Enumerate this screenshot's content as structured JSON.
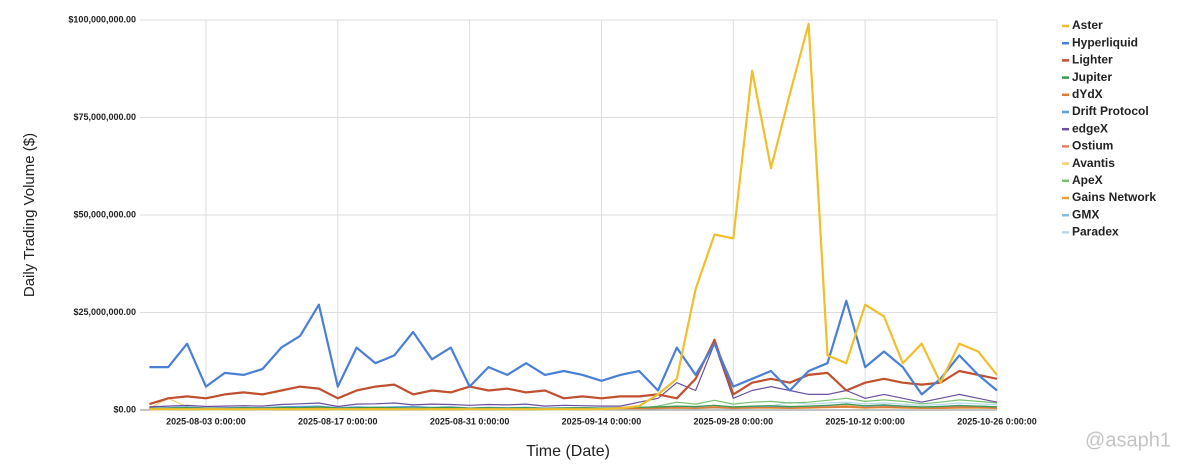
{
  "chart_data": {
    "type": "line",
    "y_label": "Daily Trading Volume ($)",
    "x_label": "Time (Date)",
    "watermark": "@asaph1",
    "legend": "right",
    "grid": true,
    "x": [
      "2025-07-28",
      "2025-07-30",
      "2025-08-01",
      "2025-08-03",
      "2025-08-05",
      "2025-08-07",
      "2025-08-09",
      "2025-08-11",
      "2025-08-13",
      "2025-08-15",
      "2025-08-17",
      "2025-08-19",
      "2025-08-21",
      "2025-08-23",
      "2025-08-25",
      "2025-08-27",
      "2025-08-29",
      "2025-08-31",
      "2025-09-02",
      "2025-09-04",
      "2025-09-06",
      "2025-09-08",
      "2025-09-10",
      "2025-09-12",
      "2025-09-14",
      "2025-09-16",
      "2025-09-18",
      "2025-09-20",
      "2025-09-22",
      "2025-09-24",
      "2025-09-26",
      "2025-09-28",
      "2025-09-30",
      "2025-10-02",
      "2025-10-04",
      "2025-10-06",
      "2025-10-08",
      "2025-10-10",
      "2025-10-12",
      "2025-10-14",
      "2025-10-16",
      "2025-10-18",
      "2025-10-20",
      "2025-10-22",
      "2025-10-24",
      "2025-10-26"
    ],
    "xlim": [
      "2025-07-27",
      "2025-10-26"
    ],
    "xticks": [
      {
        "value": "2025-08-03",
        "label": "2025-08-03 0:00:00"
      },
      {
        "value": "2025-08-17",
        "label": "2025-08-17 0:00:00"
      },
      {
        "value": "2025-08-31",
        "label": "2025-08-31 0:00:00"
      },
      {
        "value": "2025-09-14",
        "label": "2025-09-14 0:00:00"
      },
      {
        "value": "2025-09-28",
        "label": "2025-09-28 0:00:00"
      },
      {
        "value": "2025-10-12",
        "label": "2025-10-12 0:00:00"
      },
      {
        "value": "2025-10-26",
        "label": "2025-10-26 0:00:00"
      }
    ],
    "ylim": [
      0,
      100000000
    ],
    "yticks": [
      {
        "value": 0,
        "label": "$0.00"
      },
      {
        "value": 25000000,
        "label": "$25,000,000.00"
      },
      {
        "value": 50000000,
        "label": "$50,000,000.00"
      },
      {
        "value": 75000000,
        "label": "$75,000,000.00"
      },
      {
        "value": 100000000,
        "label": "$100,000,000.00"
      }
    ],
    "series": [
      {
        "name": "Aster",
        "color": "#f0bf2c",
        "values": [
          200000.0,
          200000.0,
          200000.0,
          200000.0,
          200000.0,
          200000.0,
          200000.0,
          200000.0,
          200000.0,
          200000.0,
          200000.0,
          200000.0,
          200000.0,
          200000.0,
          200000.0,
          200000.0,
          200000.0,
          200000.0,
          200000.0,
          200000.0,
          200000.0,
          200000.0,
          200000.0,
          200000.0,
          200000.0,
          500000.0,
          1000000.0,
          4000000.0,
          8000000.0,
          31000000.0,
          45000000.0,
          44000000.0,
          87000000.0,
          62000000.0,
          81000000.0,
          99000000.0,
          14000000.0,
          12000000.0,
          27000000.0,
          24000000.0,
          12000000.0,
          17000000.0,
          7000000.0,
          17000000.0,
          15000000.0,
          9000000.0
        ]
      },
      {
        "name": "Hyperliquid",
        "color": "#4a7fd6",
        "values": [
          11000000.0,
          11000000.0,
          17000000.0,
          6000000.0,
          9500000.0,
          9000000.0,
          10500000.0,
          16000000.0,
          19000000.0,
          27000000.0,
          6000000.0,
          16000000.0,
          12000000.0,
          14000000.0,
          20000000.0,
          13000000.0,
          16000000.0,
          6000000.0,
          11000000.0,
          9000000.0,
          12000000.0,
          9000000.0,
          10000000.0,
          9000000.0,
          7500000.0,
          9000000.0,
          10000000.0,
          5000000.0,
          16000000.0,
          9000000.0,
          17000000.0,
          6000000.0,
          8000000.0,
          10000000.0,
          5000000.0,
          10000000.0,
          12000000.0,
          28000000.0,
          11000000.0,
          15000000.0,
          11000000.0,
          4000000.0,
          8000000.0,
          14000000.0,
          9000000.0,
          5000000.0
        ]
      },
      {
        "name": "Lighter",
        "color": "#c0502f",
        "values": [
          1500000.0,
          3000000.0,
          3500000.0,
          3000000.0,
          4000000.0,
          4500000.0,
          4000000.0,
          5000000.0,
          6000000.0,
          5500000.0,
          3000000.0,
          5000000.0,
          6000000.0,
          6500000.0,
          4000000.0,
          5000000.0,
          4500000.0,
          6000000.0,
          5000000.0,
          5500000.0,
          4500000.0,
          5000000.0,
          3000000.0,
          3500000.0,
          3000000.0,
          3500000.0,
          3500000.0,
          4000000.0,
          3000000.0,
          8000000.0,
          18000000.0,
          4000000.0,
          7000000.0,
          8000000.0,
          7000000.0,
          9000000.0,
          9500000.0,
          5000000.0,
          7000000.0,
          8000000.0,
          7000000.0,
          6500000.0,
          7000000.0,
          10000000.0,
          9000000.0,
          8000000.0
        ]
      },
      {
        "name": "Jupiter",
        "color": "#3a9a50",
        "values": [
          400000.0,
          500000.0,
          600000.0,
          500000.0,
          400000.0,
          600000.0,
          500000.0,
          700000.0,
          600000.0,
          800000.0,
          500000.0,
          600000.0,
          700000.0,
          600000.0,
          500000.0,
          600000.0,
          700000.0,
          500000.0,
          600000.0,
          500000.0,
          600000.0,
          400000.0,
          500000.0,
          600000.0,
          500000.0,
          600000.0,
          700000.0,
          800000.0,
          1000000.0,
          900000.0,
          1200000.0,
          800000.0,
          1000000.0,
          1100000.0,
          900000.0,
          1000000.0,
          1200000.0,
          1500000.0,
          1100000.0,
          1300000.0,
          1000000.0,
          800000.0,
          900000.0,
          1100000.0,
          1000000.0,
          800000.0
        ]
      },
      {
        "name": "dYdX",
        "color": "#e07a2f",
        "values": [
          300000.0,
          300000.0,
          400000.0,
          300000.0,
          300000.0,
          400000.0,
          300000.0,
          400000.0,
          500000.0,
          400000.0,
          300000.0,
          400000.0,
          400000.0,
          300000.0,
          400000.0,
          300000.0,
          400000.0,
          300000.0,
          300000.0,
          400000.0,
          300000.0,
          300000.0,
          400000.0,
          300000.0,
          300000.0,
          400000.0,
          400000.0,
          500000.0,
          600000.0,
          500000.0,
          700000.0,
          500000.0,
          600000.0,
          600000.0,
          500000.0,
          600000.0,
          700000.0,
          800000.0,
          600000.0,
          700000.0,
          600000.0,
          500000.0,
          500000.0,
          600000.0,
          600000.0,
          500000.0
        ]
      },
      {
        "name": "Drift Protocol",
        "color": "#5aa0d6",
        "values": [
          500000.0,
          600000.0,
          800000.0,
          500000.0,
          600000.0,
          700000.0,
          600000.0,
          800000.0,
          900000.0,
          1000000.0,
          600000.0,
          800000.0,
          700000.0,
          800000.0,
          900000.0,
          700000.0,
          800000.0,
          500000.0,
          700000.0,
          600000.0,
          700000.0,
          500000.0,
          600000.0,
          600000.0,
          500000.0,
          600000.0,
          700000.0,
          600000.0,
          1000000.0,
          800000.0,
          1200000.0,
          700000.0,
          900000.0,
          1000000.0,
          800000.0,
          1000000.0,
          1100000.0,
          1600000.0,
          1000000.0,
          1200000.0,
          1000000.0,
          700000.0,
          900000.0,
          1200000.0,
          1000000.0,
          800000.0
        ]
      },
      {
        "name": "edgeX",
        "color": "#6a4f9e",
        "values": [
          800000.0,
          1000000.0,
          1200000.0,
          900000.0,
          1000000.0,
          1100000.0,
          1000000.0,
          1400000.0,
          1600000.0,
          1800000.0,
          900000.0,
          1500000.0,
          1600000.0,
          1800000.0,
          1300000.0,
          1500000.0,
          1400000.0,
          1200000.0,
          1400000.0,
          1300000.0,
          1500000.0,
          1000000.0,
          1200000.0,
          1100000.0,
          1000000.0,
          1000000.0,
          2000000.0,
          3000000.0,
          7000000.0,
          5000000.0,
          17000000.0,
          3000000.0,
          5000000.0,
          6000000.0,
          5000000.0,
          4000000.0,
          4000000.0,
          5000000.0,
          3000000.0,
          4000000.0,
          3000000.0,
          2000000.0,
          3000000.0,
          4000000.0,
          3000000.0,
          2000000.0
        ]
      },
      {
        "name": "Ostium",
        "color": "#e0846a",
        "values": [
          200000.0,
          300000.0,
          300000.0,
          200000.0,
          300000.0,
          300000.0,
          200000.0,
          300000.0,
          400000.0,
          300000.0,
          200000.0,
          300000.0,
          300000.0,
          400000.0,
          300000.0,
          300000.0,
          400000.0,
          300000.0,
          300000.0,
          300000.0,
          400000.0,
          300000.0,
          300000.0,
          300000.0,
          300000.0,
          400000.0,
          400000.0,
          500000.0,
          600000.0,
          500000.0,
          800000.0,
          500000.0,
          600000.0,
          700000.0,
          600000.0,
          700000.0,
          800000.0,
          1000000.0,
          700000.0,
          900000.0,
          800000.0,
          600000.0,
          700000.0,
          900000.0,
          800000.0,
          600000.0
        ]
      },
      {
        "name": "Avantis",
        "color": "#f5d070",
        "values": [
          500000.0,
          3000000.0,
          800000.0,
          500000.0,
          600000.0,
          500000.0,
          600000.0,
          700000.0,
          600000.0,
          800000.0,
          500000.0,
          600000.0,
          600000.0,
          500000.0,
          600000.0,
          500000.0,
          600000.0,
          400000.0,
          500000.0,
          500000.0,
          600000.0,
          400000.0,
          500000.0,
          500000.0,
          400000.0,
          500000.0,
          600000.0,
          700000.0,
          900000.0,
          800000.0,
          1000000.0,
          700000.0,
          900000.0,
          1000000.0,
          800000.0,
          900000.0,
          1000000.0,
          1300000.0,
          900000.0,
          1100000.0,
          900000.0,
          700000.0,
          800000.0,
          1000000.0,
          900000.0,
          700000.0
        ]
      },
      {
        "name": "ApeX",
        "color": "#7ac070",
        "values": [
          300000.0,
          400000.0,
          500000.0,
          300000.0,
          400000.0,
          400000.0,
          300000.0,
          500000.0,
          500000.0,
          600000.0,
          300000.0,
          400000.0,
          500000.0,
          400000.0,
          400000.0,
          400000.0,
          500000.0,
          300000.0,
          400000.0,
          400000.0,
          400000.0,
          300000.0,
          400000.0,
          400000.0,
          300000.0,
          400000.0,
          500000.0,
          1000000.0,
          2000000.0,
          1500000.0,
          2500000.0,
          1500000.0,
          2000000.0,
          2200000.0,
          1800000.0,
          2000000.0,
          2500000.0,
          3000000.0,
          2200000.0,
          2600000.0,
          2200000.0,
          1600000.0,
          2000000.0,
          2600000.0,
          2200000.0,
          1800000.0
        ]
      },
      {
        "name": "Gains Network",
        "color": "#e8a040",
        "values": [
          200000.0,
          200000.0,
          300000.0,
          200000.0,
          200000.0,
          300000.0,
          200000.0,
          300000.0,
          300000.0,
          300000.0,
          200000.0,
          300000.0,
          300000.0,
          200000.0,
          300000.0,
          200000.0,
          300000.0,
          200000.0,
          200000.0,
          300000.0,
          200000.0,
          200000.0,
          300000.0,
          200000.0,
          200000.0,
          300000.0,
          300000.0,
          400000.0,
          500000.0,
          400000.0,
          600000.0,
          400000.0,
          500000.0,
          500000.0,
          400000.0,
          500000.0,
          600000.0,
          700000.0,
          500000.0,
          600000.0,
          500000.0,
          400000.0,
          400000.0,
          500000.0,
          500000.0,
          400000.0
        ]
      },
      {
        "name": "GMX",
        "color": "#8abde0",
        "values": [
          300000.0,
          400000.0,
          500000.0,
          300000.0,
          400000.0,
          400000.0,
          400000.0,
          500000.0,
          600000.0,
          700000.0,
          300000.0,
          500000.0,
          500000.0,
          500000.0,
          600000.0,
          400000.0,
          500000.0,
          300000.0,
          400000.0,
          400000.0,
          400000.0,
          300000.0,
          400000.0,
          400000.0,
          300000.0,
          400000.0,
          400000.0,
          500000.0,
          700000.0,
          500000.0,
          900000.0,
          500000.0,
          600000.0,
          700000.0,
          500000.0,
          600000.0,
          700000.0,
          1100000.0,
          700000.0,
          800000.0,
          700000.0,
          500000.0,
          600000.0,
          800000.0,
          700000.0,
          500000.0
        ]
      },
      {
        "name": "Paradex",
        "color": "#b8d8ee",
        "values": [
          100000.0,
          100000.0,
          200000.0,
          100000.0,
          100000.0,
          200000.0,
          100000.0,
          200000.0,
          200000.0,
          200000.0,
          100000.0,
          200000.0,
          200000.0,
          200000.0,
          200000.0,
          100000.0,
          200000.0,
          100000.0,
          200000.0,
          100000.0,
          200000.0,
          100000.0,
          100000.0,
          200000.0,
          100000.0,
          200000.0,
          200000.0,
          300000.0,
          400000.0,
          300000.0,
          500000.0,
          300000.0,
          400000.0,
          1000000.0,
          2000000.0,
          1500000.0,
          1800000.0,
          2000000.0,
          1600000.0,
          1800000.0,
          1500000.0,
          1200000.0,
          1400000.0,
          1800000.0,
          1600000.0,
          1300000.0
        ]
      }
    ]
  }
}
